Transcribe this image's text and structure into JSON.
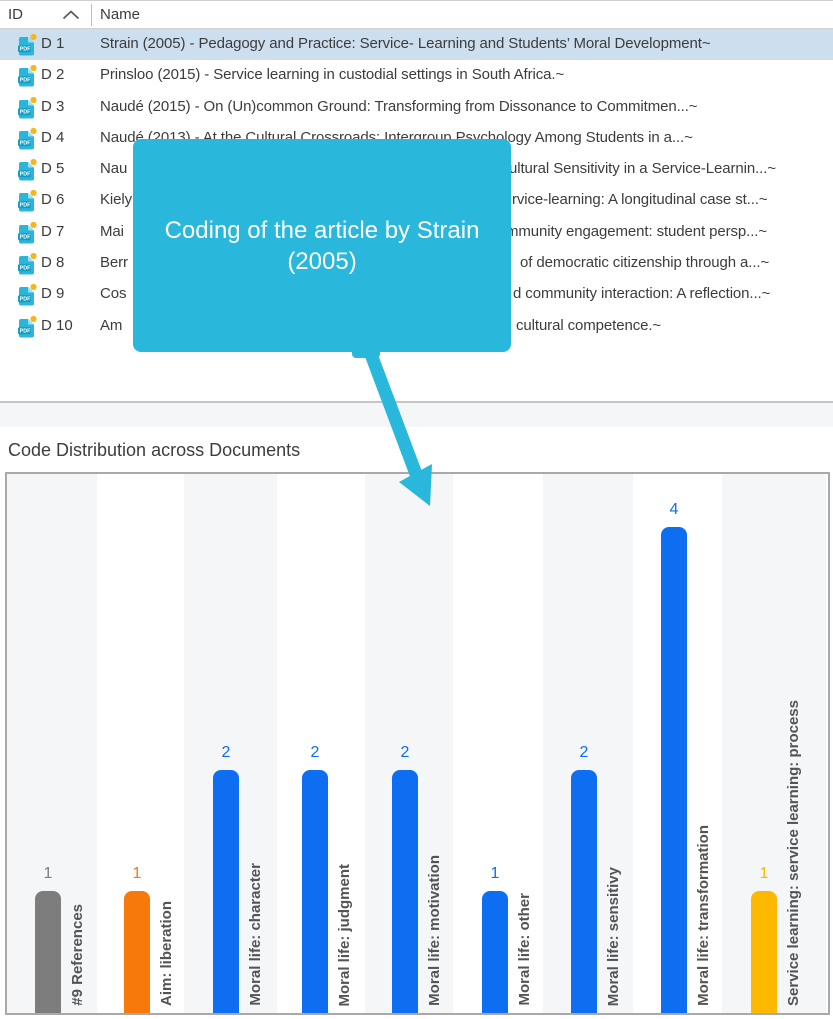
{
  "document_list": {
    "columns": [
      {
        "label": "ID"
      },
      {
        "label": "Name"
      }
    ],
    "sort_icon": "chevron-up-icon",
    "rows": [
      {
        "id": "D 1",
        "name": "Strain (2005) - Pedagogy and Practice: Service- Learning and Students’ Moral Development~",
        "selected": true
      },
      {
        "id": "D 2",
        "name": "Prinsloo (2015) - Service learning in custodial settings in South Africa.~"
      },
      {
        "id": "D 3",
        "name": "Naudé (2015) - On (Un)common Ground: Transforming from Dissonance to Commitmen...~"
      },
      {
        "id": "D 4",
        "name": "Naudé (2013) - At the Cultural Crossroads: Intergroup Psychology Among Students in a...~"
      },
      {
        "id": "D 5",
        "name_left": "Nau",
        "name_right": "ultural Sensitivity in a Service-Learnin...~"
      },
      {
        "id": "D 6",
        "name_left": "Kiely",
        "name_right": "rvice-learning: A longitudinal case st...~"
      },
      {
        "id": "D 7",
        "name_left": "Mai",
        "name_right": "mmunity engagement: student persp...~"
      },
      {
        "id": "D 8",
        "name_left": "Berr",
        "name_right": "of democratic citizenship through a...~"
      },
      {
        "id": "D 9",
        "name_left": "Cos",
        "name_right": "d community interaction: A reflection...~"
      },
      {
        "id": "D 10",
        "name_left": "Am",
        "name_right": "cultural competence.~"
      }
    ]
  },
  "callout": {
    "text": "Coding of the article by Strain (2005)",
    "color": "#29b8dc"
  },
  "section": {
    "title": "Code Distribution across Documents"
  },
  "chart_data": {
    "type": "bar",
    "title": "Code Distribution across Documents",
    "categories": [
      "#9 References",
      "Aim: liberation",
      "Moral life: character",
      "Moral life: judgment",
      "Moral life: motivation",
      "Moral life: other",
      "Moral life: sensitivy",
      "Moral life: transformation",
      "Service learning: service learning: process"
    ],
    "values": [
      1,
      1,
      2,
      2,
      2,
      1,
      2,
      4,
      1
    ],
    "bar_colors": [
      "#7d7d7d",
      "#f8790b",
      "#0d6ef2",
      "#0d6ef2",
      "#0d6ef2",
      "#0d6ef2",
      "#0d6ef2",
      "#0d6ef2",
      "#fcb900"
    ],
    "xlabel": "",
    "ylabel": "",
    "ylim": [
      0,
      4
    ],
    "grid": false,
    "legend": false,
    "value_labels": true,
    "band_background_alternating": [
      "#f5f6f8",
      "#ffffff"
    ]
  },
  "colors": {
    "selected_row": "#cddeef",
    "callout_cyan": "#29b8dc",
    "pdf_icon_cyan": "#2cb5d9",
    "dot_yellow": "#f4b71d"
  }
}
